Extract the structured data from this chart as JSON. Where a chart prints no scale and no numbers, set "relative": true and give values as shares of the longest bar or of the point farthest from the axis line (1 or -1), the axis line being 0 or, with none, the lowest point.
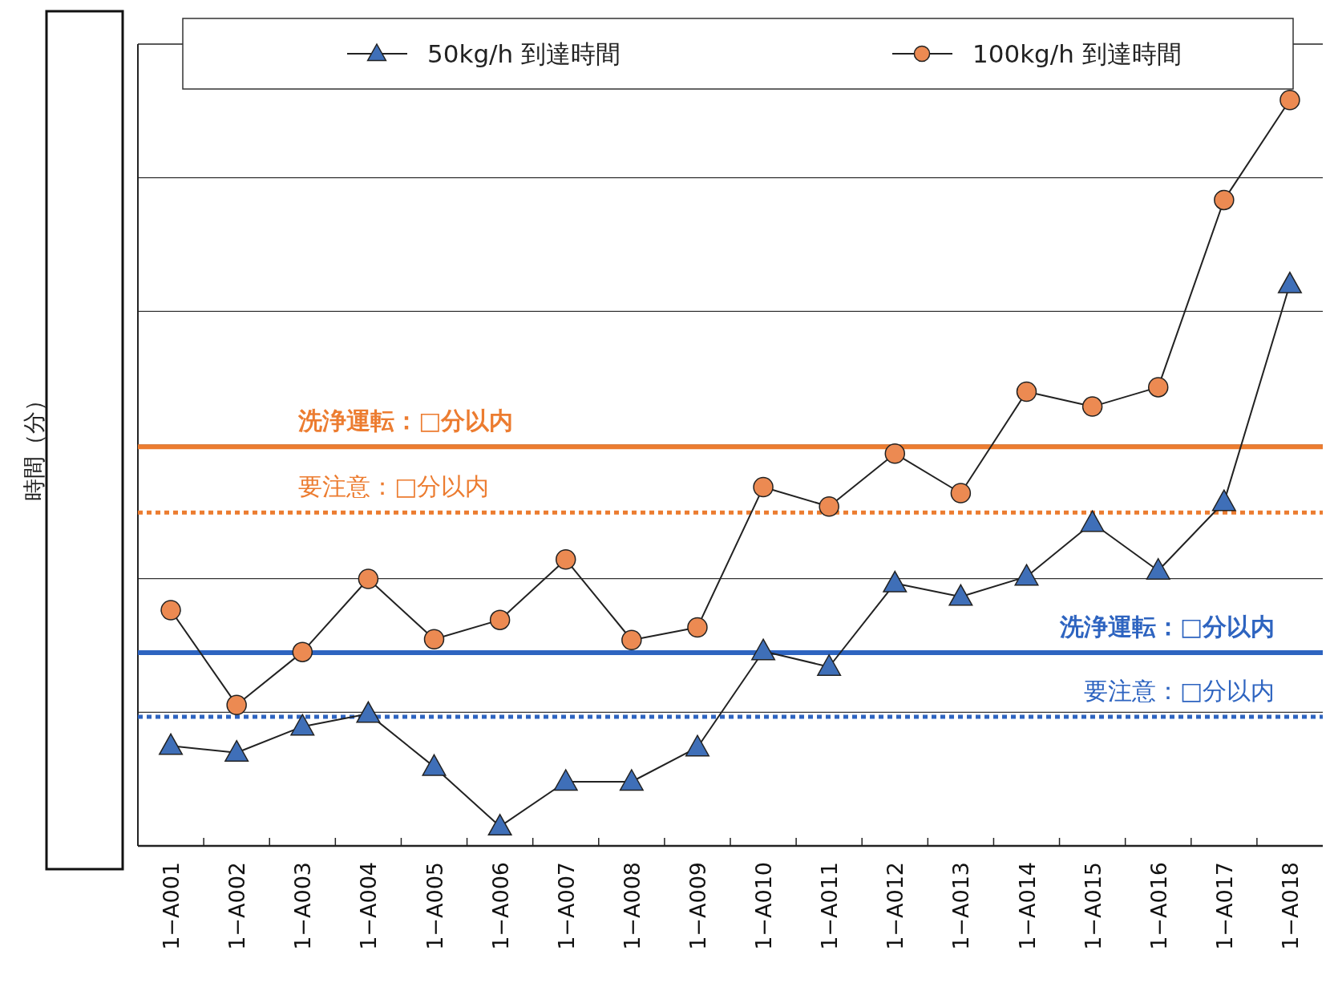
{
  "chart_data": {
    "type": "line",
    "ylabel": "時間（分）",
    "relative": true,
    "grid": "y",
    "legend": "top",
    "line_style": "solid",
    "categories": [
      "1−A001",
      "1−A002",
      "1−A003",
      "1−A004",
      "1−A005",
      "1−A006",
      "1−A007",
      "1−A008",
      "1−A009",
      "1−A010",
      "1−A011",
      "1−A012",
      "1−A013",
      "1−A014",
      "1−A015",
      "1−A016",
      "1−A017",
      "1−A018"
    ],
    "series": [
      {
        "name": "50kg/h 到達時間",
        "color": "#3f6fb8",
        "marker": "triangle",
        "values": [
          0.134,
          0.125,
          0.16,
          0.177,
          0.106,
          0.026,
          0.086,
          0.086,
          0.132,
          0.261,
          0.24,
          0.352,
          0.334,
          0.361,
          0.433,
          0.369,
          0.461,
          0.753
        ]
      },
      {
        "name": "100kg/h 到達時間",
        "color": "#ec8a52",
        "marker": "circle",
        "values": [
          0.316,
          0.189,
          0.26,
          0.358,
          0.277,
          0.303,
          0.384,
          0.276,
          0.293,
          0.481,
          0.455,
          0.526,
          0.473,
          0.609,
          0.589,
          0.615,
          0.866,
          1
        ]
      }
    ],
    "ref_lines": [
      {
        "axis": "y",
        "value": 0.535,
        "label": "洗浄運転：□分以内",
        "color": "#ec7c30",
        "line_style": "solid"
      },
      {
        "axis": "y",
        "value": 0.447,
        "label": "要注意：□分以内",
        "color": "#ec7c30",
        "line_style": "dotted"
      },
      {
        "axis": "y",
        "value": 0.259,
        "label": "洗浄運転：□分以内",
        "color": "#2e64c0",
        "line_style": "solid"
      },
      {
        "axis": "y",
        "value": 0.173,
        "label": "要注意：□分以内",
        "color": "#2e64c0",
        "line_style": "dotted"
      }
    ]
  }
}
